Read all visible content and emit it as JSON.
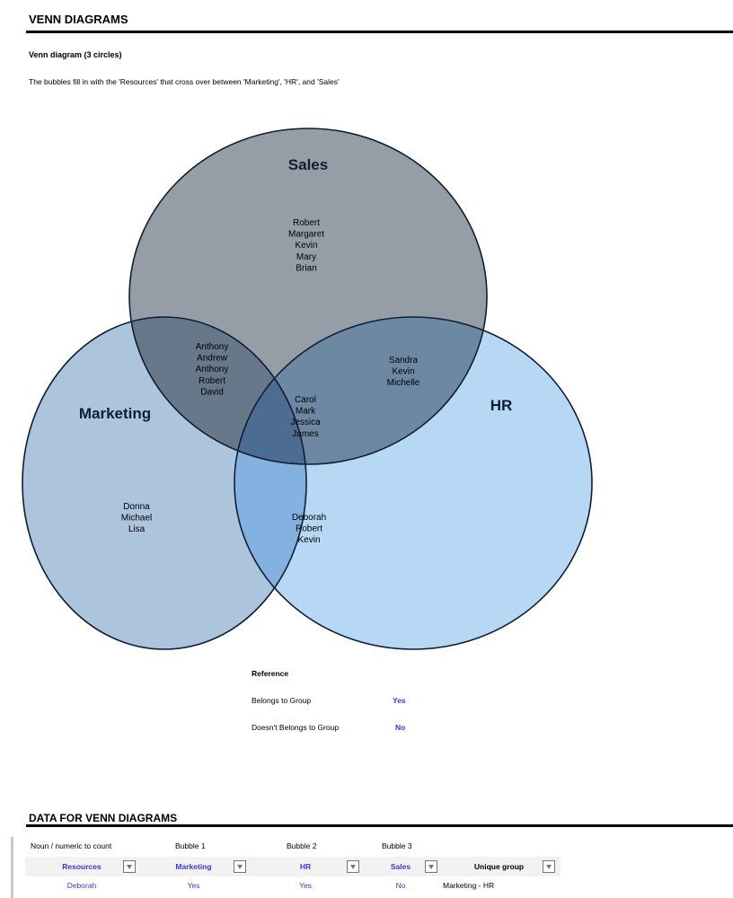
{
  "title": "VENN DIAGRAMS",
  "subtitle": "Venn diagram (3 circles)",
  "description": "The bubbles fill in with the 'Resources' that cross over between 'Marketing', 'HR', and 'Sales'",
  "venn": {
    "sets": {
      "sales": "Sales",
      "marketing": "Marketing",
      "hr": "HR"
    },
    "colors": {
      "sales": "#959ea7",
      "marketing": "#adc4dd",
      "hr": "#b7d8f5",
      "sales_marketing": "#66788a",
      "sales_hr": "#6d88a3",
      "marketing_hr": "#83b1e0",
      "all": "#4c6d91",
      "stroke": "#0f1f33"
    },
    "regions": {
      "sales_only": [
        "Robert",
        "Margaret",
        "Kevin",
        "Mary",
        "Brian"
      ],
      "marketing_sales": [
        "Anthony",
        "Andrew",
        "Anthony",
        "Robert",
        "David"
      ],
      "sales_hr": [
        "Sandra",
        "Kevin",
        "Michelle"
      ],
      "all_three": [
        "Carol",
        "Mark",
        "Jessica",
        "James"
      ],
      "marketing_only": [
        "Donna",
        "Michael",
        "Lisa"
      ],
      "marketing_hr": [
        "Deborah",
        "Robert",
        "Kevin"
      ],
      "hr_only": []
    }
  },
  "reference": {
    "title": "Reference",
    "belongs_label": "Belongs to Group",
    "belongs_value": "Yes",
    "not_belongs_label": "Doesn't Belongs to Group",
    "not_belongs_value": "No"
  },
  "data_section": {
    "title": "DATA FOR VENN DIAGRAMS",
    "top_labels": [
      "Noun / numeric to count",
      "Bubble 1",
      "Bubble 2",
      "Bubble 3"
    ],
    "headers": [
      "Resources",
      "Marketing",
      "HR",
      "Sales",
      "Unique group"
    ],
    "rows": [
      [
        "Deborah",
        "Yes",
        "Yes",
        "No",
        "Marketing - HR"
      ]
    ]
  }
}
